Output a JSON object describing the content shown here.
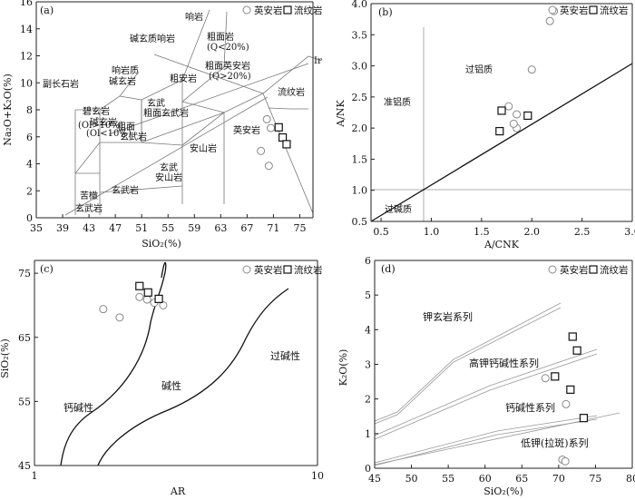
{
  "legend": {
    "circle_label": "英安岩",
    "square_label": "流纹岩"
  },
  "chart_data": [
    {
      "type": "scatter",
      "panel": "(a)",
      "xlabel": "SiO₂(%)",
      "ylabel": "Na₂O+K₂O(%)",
      "xlim": [
        35,
        77
      ],
      "ylim": [
        0,
        16
      ],
      "xticks": [
        35,
        39,
        43,
        47,
        51,
        55,
        59,
        63,
        67,
        71,
        75
      ],
      "yticks": [
        0,
        2,
        4,
        6,
        8,
        10,
        12,
        14,
        16
      ],
      "fields": [
        "响岩",
        "碱玄质响岩",
        "粗面岩",
        "(Q<20%)",
        "粗面英安岩",
        "(Q>20%)",
        "响岩质",
        "碱玄岩",
        "副长石岩",
        "碱玄岩",
        "(Ol<10%)",
        "碧玄岩",
        "(Ol>10%)",
        "玄武",
        "粗面玄武岩",
        "粗面",
        "玄武岩",
        "粗安岩",
        "流纹岩",
        "英安岩",
        "安山岩",
        "玄武",
        "安山岩",
        "玄武岩",
        "苦橄",
        "玄武岩",
        "Ir"
      ],
      "series": [
        {
          "name": "英安岩",
          "marker": "circle",
          "x": [
            70.0,
            70.6,
            69.1,
            70.3
          ],
          "y": [
            7.3,
            6.65,
            4.95,
            3.85
          ]
        },
        {
          "name": "流纹岩",
          "marker": "square",
          "x": [
            71.8,
            72.4,
            73.0
          ],
          "y": [
            6.7,
            5.95,
            5.45
          ]
        }
      ]
    },
    {
      "type": "scatter",
      "panel": "(b)",
      "xlabel": "A/CNK",
      "ylabel": "A/NK",
      "xlim": [
        0.4,
        3.0
      ],
      "ylim": [
        0.5,
        4.0
      ],
      "xticks": [
        "0.5",
        "1.0",
        "1.5",
        "2.0",
        "2.5",
        "3.0"
      ],
      "yticks": [
        "0.5",
        "1.0",
        "1.5",
        "2.0",
        "2.5",
        "3.0",
        "3.5",
        "4.0"
      ],
      "fields": [
        "准铝质",
        "过铝质",
        "过碱质"
      ],
      "series": [
        {
          "name": "英安岩",
          "marker": "circle",
          "x": [
            2.22,
            2.18,
            2.0,
            1.77,
            1.85,
            1.85,
            1.82
          ],
          "y": [
            3.88,
            3.72,
            2.94,
            2.35,
            2.22,
            2.0,
            2.07
          ]
        },
        {
          "name": "流纹岩",
          "marker": "square",
          "x": [
            1.7,
            1.96,
            1.68
          ],
          "y": [
            2.28,
            2.2,
            1.95
          ]
        }
      ]
    },
    {
      "type": "scatter",
      "panel": "(c)",
      "xlabel": "AR",
      "ylabel": "SiO₂(%)",
      "xscale": "log",
      "xlim": [
        1,
        10
      ],
      "ylim": [
        45,
        77
      ],
      "xticks": [
        "1",
        "10"
      ],
      "yticks": [
        "45",
        "55",
        "65",
        "75"
      ],
      "fields": [
        "钙碱性",
        "碱性",
        "过碱性"
      ],
      "series": [
        {
          "name": "英安岩",
          "marker": "circle",
          "x": [
            1.75,
            2.0,
            2.35,
            2.5,
            2.65,
            2.85
          ],
          "y": [
            69.4,
            68.1,
            71.3,
            70.9,
            70.4,
            70.0
          ]
        },
        {
          "name": "流纹岩",
          "marker": "square",
          "x": [
            2.35,
            2.52,
            2.75
          ],
          "y": [
            73.0,
            72.0,
            71.0
          ]
        }
      ]
    },
    {
      "type": "scatter",
      "panel": "(d)",
      "xlabel": "SiO₂(%)",
      "ylabel": "K₂O(%)",
      "xlim": [
        45,
        80
      ],
      "ylim": [
        0,
        6
      ],
      "xticks": [
        "45",
        "50",
        "55",
        "60",
        "65",
        "70",
        "75",
        "80"
      ],
      "yticks": [
        "0",
        "1",
        "2",
        "3",
        "4",
        "5",
        "6"
      ],
      "fields": [
        "钾玄岩系列",
        "高钾钙碱性系列",
        "钙碱性系列",
        "低钾(拉斑)系列"
      ],
      "series": [
        {
          "name": "英安岩",
          "marker": "circle",
          "x": [
            68.2,
            71.0,
            70.5,
            70.9
          ],
          "y": [
            2.6,
            1.85,
            0.25,
            0.2
          ]
        },
        {
          "name": "流纹岩",
          "marker": "square",
          "x": [
            71.9,
            72.5,
            71.6,
            73.4,
            69.5
          ],
          "y": [
            3.8,
            3.4,
            2.27,
            1.45,
            2.65
          ]
        }
      ]
    }
  ]
}
